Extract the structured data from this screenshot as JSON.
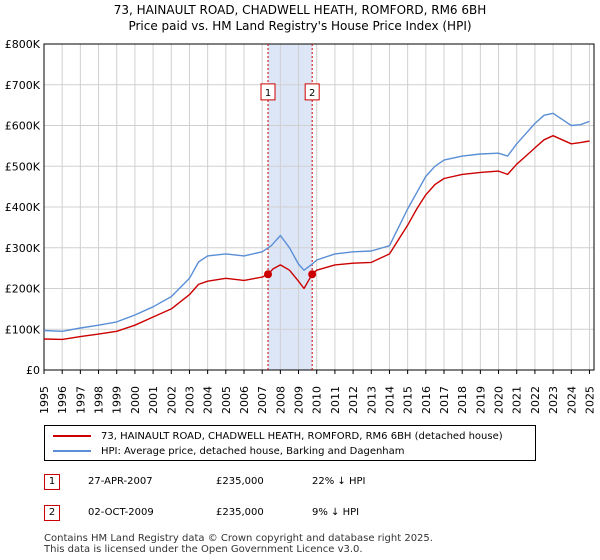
{
  "chart_data": {
    "type": "line",
    "title": "73, HAINAULT ROAD, CHADWELL HEATH, ROMFORD, RM6 6BH",
    "subtitle": "Price paid vs. HM Land Registry's House Price Index (HPI)",
    "xlabel": "",
    "ylabel": "",
    "xlim": [
      1995,
      2025.25
    ],
    "ylim": [
      0,
      800000
    ],
    "x_ticks": [
      "1995",
      "1996",
      "1997",
      "1998",
      "1999",
      "2000",
      "2001",
      "2002",
      "2003",
      "2004",
      "2005",
      "2006",
      "2007",
      "2008",
      "2009",
      "2010",
      "2011",
      "2012",
      "2013",
      "2014",
      "2015",
      "2016",
      "2017",
      "2018",
      "2019",
      "2020",
      "2021",
      "2022",
      "2023",
      "2024",
      "2025"
    ],
    "y_ticks": [
      {
        "value": 0,
        "label": "£0"
      },
      {
        "value": 100000,
        "label": "£100K"
      },
      {
        "value": 200000,
        "label": "£200K"
      },
      {
        "value": 300000,
        "label": "£300K"
      },
      {
        "value": 400000,
        "label": "£400K"
      },
      {
        "value": 500000,
        "label": "£500K"
      },
      {
        "value": 600000,
        "label": "£600K"
      },
      {
        "value": 700000,
        "label": "£700K"
      },
      {
        "value": 800000,
        "label": "£800K"
      }
    ],
    "grid": true,
    "shaded_region": {
      "x_start": 2007.32,
      "x_end": 2009.75,
      "color": "#dde6f7"
    },
    "series": [
      {
        "name": "73, HAINAULT ROAD, CHADWELL HEATH, ROMFORD, RM6 6BH (detached house)",
        "color": "#cc0000",
        "x": [
          1995,
          1996,
          1997,
          1998,
          1999,
          2000,
          2001,
          2002,
          2003,
          2003.5,
          2004,
          2005,
          2006,
          2007,
          2007.32,
          2007.6,
          2008,
          2008.5,
          2009,
          2009.3,
          2009.75,
          2010,
          2011,
          2012,
          2013,
          2014,
          2014.5,
          2015,
          2015.5,
          2016,
          2016.5,
          2017,
          2018,
          2019,
          2020,
          2020.5,
          2021,
          2021.5,
          2022,
          2022.5,
          2023,
          2023.5,
          2024,
          2024.5,
          2025
        ],
        "values": [
          76000,
          75000,
          82000,
          88000,
          95000,
          110000,
          130000,
          150000,
          185000,
          210000,
          218000,
          225000,
          220000,
          228000,
          235000,
          248000,
          258000,
          245000,
          218000,
          200000,
          235000,
          245000,
          258000,
          262000,
          264000,
          285000,
          320000,
          355000,
          395000,
          430000,
          455000,
          470000,
          480000,
          485000,
          488000,
          480000,
          505000,
          525000,
          545000,
          565000,
          575000,
          565000,
          555000,
          558000,
          562000
        ]
      },
      {
        "name": "HPI: Average price, detached house, Barking and Dagenham",
        "color": "#5a8fd6",
        "x": [
          1995,
          1996,
          1997,
          1998,
          1999,
          2000,
          2001,
          2002,
          2003,
          2003.5,
          2004,
          2005,
          2006,
          2007,
          2007.5,
          2008,
          2008.5,
          2009,
          2009.3,
          2009.75,
          2010,
          2011,
          2012,
          2013,
          2014,
          2014.5,
          2015,
          2015.5,
          2016,
          2016.5,
          2017,
          2018,
          2019,
          2020,
          2020.5,
          2021,
          2021.5,
          2022,
          2022.5,
          2023,
          2023.5,
          2024,
          2024.5,
          2025
        ],
        "values": [
          97000,
          95000,
          103000,
          110000,
          118000,
          135000,
          155000,
          180000,
          225000,
          265000,
          280000,
          285000,
          280000,
          290000,
          305000,
          330000,
          300000,
          260000,
          245000,
          260000,
          270000,
          285000,
          290000,
          292000,
          305000,
          350000,
          395000,
          435000,
          475000,
          500000,
          515000,
          525000,
          530000,
          532000,
          525000,
          555000,
          580000,
          605000,
          625000,
          630000,
          615000,
          600000,
          602000,
          610000
        ]
      }
    ],
    "markers": [
      {
        "id": "1",
        "x": 2007.32,
        "y": 235000
      },
      {
        "id": "2",
        "x": 2009.75,
        "y": 235000
      }
    ]
  },
  "legend": {
    "items": [
      {
        "label": "73, HAINAULT ROAD, CHADWELL HEATH, ROMFORD, RM6 6BH (detached house)",
        "color": "#cc0000"
      },
      {
        "label": "HPI: Average price, detached house, Barking and Dagenham",
        "color": "#5a8fd6"
      }
    ]
  },
  "transactions": [
    {
      "id": "1",
      "date": "27-APR-2007",
      "price": "£235,000",
      "hpi": "22% ↓ HPI"
    },
    {
      "id": "2",
      "date": "02-OCT-2009",
      "price": "£235,000",
      "hpi": "9% ↓ HPI"
    }
  ],
  "footer": {
    "line1": "Contains HM Land Registry data © Crown copyright and database right 2025.",
    "line2": "This data is licensed under the Open Government Licence v3.0."
  }
}
